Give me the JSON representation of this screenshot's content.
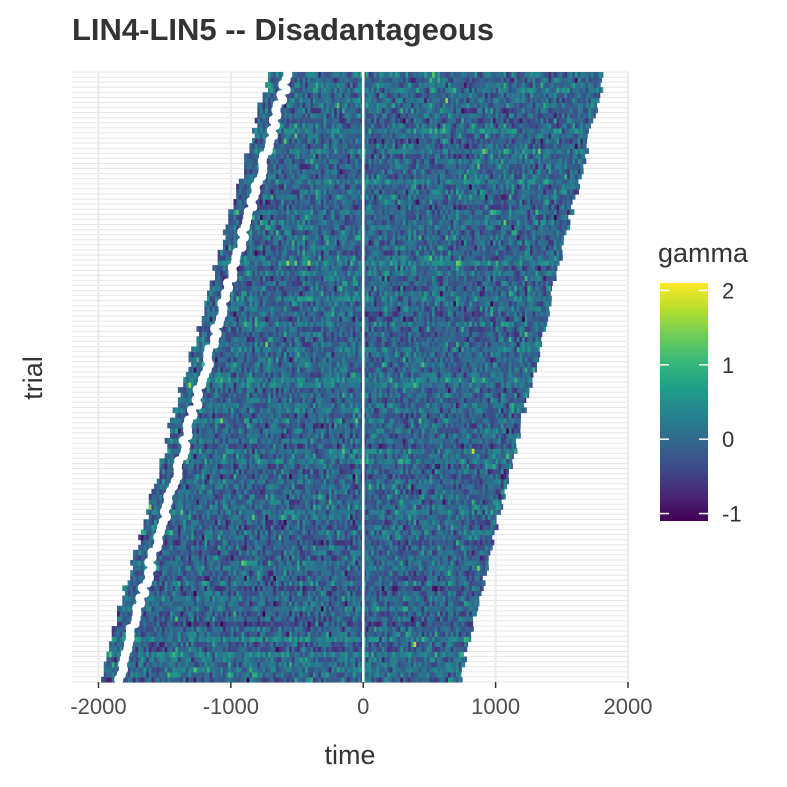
{
  "chart_data": {
    "type": "heatmap",
    "title": "LIN4-LIN5 -- Disadantageous",
    "xlabel": "time",
    "ylabel": "trial",
    "xlim": [
      -2200,
      2000
    ],
    "x_ticks": [
      -2000,
      -1000,
      0,
      1000,
      2000
    ],
    "x_tick_labels": [
      "-2000",
      "-1000",
      "0",
      "1000",
      "2000"
    ],
    "n_trials": 120,
    "reference_line_x": 0,
    "start_time_range": [
      -1980,
      -700
    ],
    "end_time_range": [
      730,
      1820
    ],
    "response_marker_offset": 120,
    "bin_width": 20,
    "fill_scale": {
      "name": "gamma",
      "palette": "viridis",
      "limits": [
        -1.1,
        2.1
      ],
      "breaks": [
        -1,
        0,
        1,
        2
      ],
      "break_labels": [
        "-1",
        "0",
        "1",
        "2"
      ],
      "colors": [
        "#440154",
        "#482878",
        "#3E4A89",
        "#31688E",
        "#26828E",
        "#1F9E89",
        "#35B779",
        "#6DCD59",
        "#B4DE2C",
        "#FDE725"
      ]
    },
    "grid": true,
    "legend_position": "right"
  }
}
